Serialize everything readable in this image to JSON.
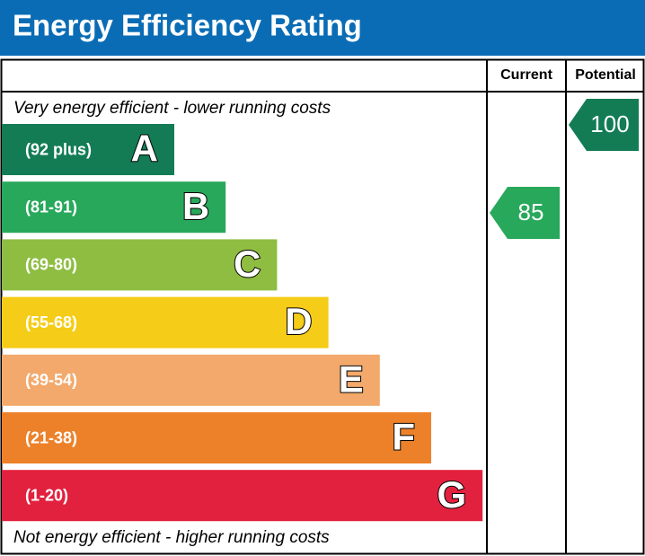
{
  "header": {
    "title": "Energy Efficiency Rating"
  },
  "columns": {
    "current": "Current",
    "potential": "Potential"
  },
  "notes": {
    "top": "Very energy efficient - lower running costs",
    "bottom": "Not energy efficient - higher running costs"
  },
  "bands": [
    {
      "range": "(92 plus)",
      "letter": "A",
      "color": "#137c55"
    },
    {
      "range": "(81-91)",
      "letter": "B",
      "color": "#28a85b"
    },
    {
      "range": "(69-80)",
      "letter": "C",
      "color": "#8ebd42"
    },
    {
      "range": "(55-68)",
      "letter": "D",
      "color": "#f5cc17"
    },
    {
      "range": "(39-54)",
      "letter": "E",
      "color": "#f2a96b"
    },
    {
      "range": "(21-38)",
      "letter": "F",
      "color": "#ec812a"
    },
    {
      "range": "(1-20)",
      "letter": "G",
      "color": "#e2213e"
    }
  ],
  "current": {
    "value": 85,
    "color": "#28a85b"
  },
  "potential": {
    "value": 100,
    "color": "#137c55"
  }
}
